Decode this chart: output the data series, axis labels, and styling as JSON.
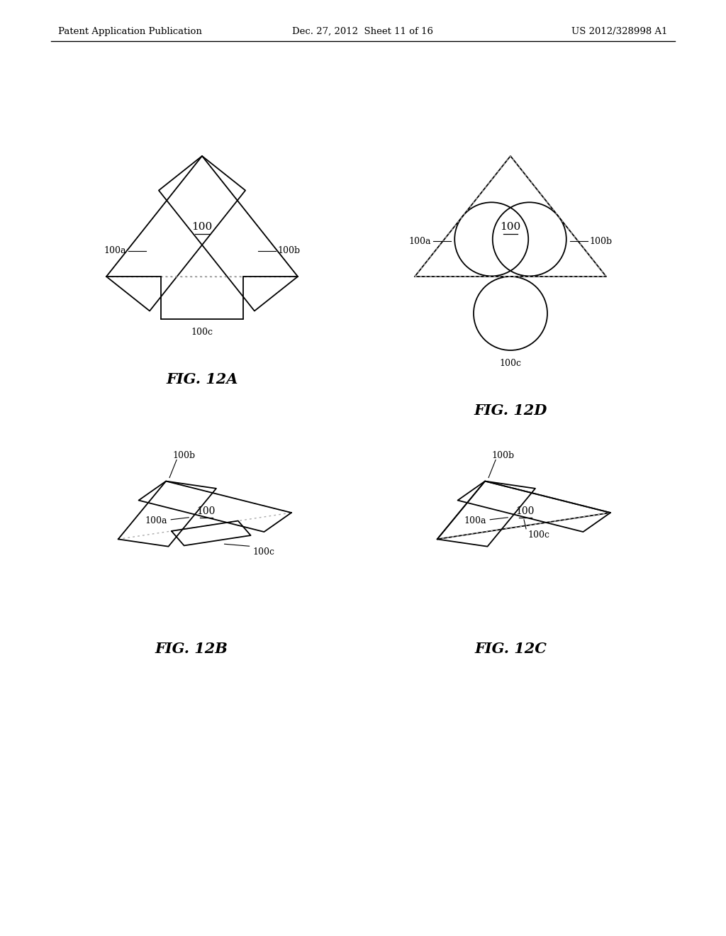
{
  "header_left": "Patent Application Publication",
  "header_center": "Dec. 27, 2012  Sheet 11 of 16",
  "header_right": "US 2012/328998 A1",
  "fig_12A_label": "FIG. 12A",
  "fig_12B_label": "FIG. 12B",
  "fig_12C_label": "FIG. 12C",
  "fig_12D_label": "FIG. 12D",
  "label_100": "100",
  "label_100a": "100a",
  "label_100b": "100b",
  "label_100c": "100c",
  "bg_color": "#ffffff",
  "line_color": "#000000",
  "dashed_color": "#999999"
}
